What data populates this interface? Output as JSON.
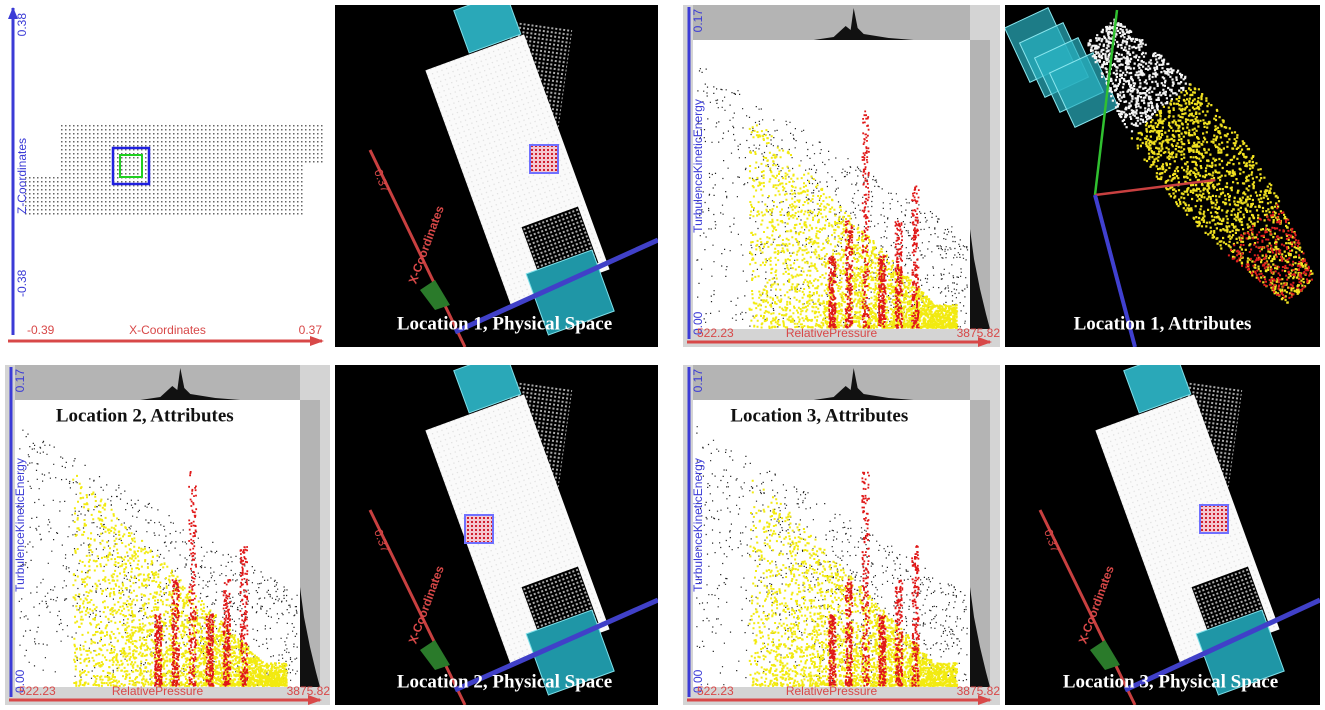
{
  "panels": [
    {
      "z_max": "0.38",
      "z_label": "Z-Coordinates",
      "z_min": "-0.38",
      "x_min": "-0.39",
      "x_label": "X-Coordinates",
      "x_max": "0.37"
    },
    {
      "caption": "Location 1, Physical Space",
      "axis_label": "X-Coordinates",
      "axis_max": "0.37"
    },
    {
      "y_max": "0.17",
      "y_label": "TurbulenceKineticEnergy",
      "y_min": "0.00",
      "x_min": "522.23",
      "x_label": "RelativePressure",
      "x_max": "3875.82"
    },
    {
      "caption": "Location 1, Attributes"
    },
    {
      "caption": "Location 2, Attributes",
      "y_max": "0.17",
      "y_label": "TurbulenceKineticEnergy",
      "y_min": "0.00",
      "x_min": "522.23",
      "x_label": "RelativePressure",
      "x_max": "3875.82"
    },
    {
      "caption": "Location 2, Physical Space",
      "axis_label": "X-Coordinates",
      "axis_max": "0.37"
    },
    {
      "caption": "Location 3, Attributes",
      "y_max": "0.17",
      "y_label": "TurbulenceKineticEnergy",
      "y_min": "0.00",
      "x_min": "522.23",
      "x_label": "RelativePressure",
      "x_max": "3875.82"
    },
    {
      "caption": "Location 3, Physical Space",
      "axis_label": "X-Coordinates",
      "axis_max": "0.37"
    }
  ]
}
